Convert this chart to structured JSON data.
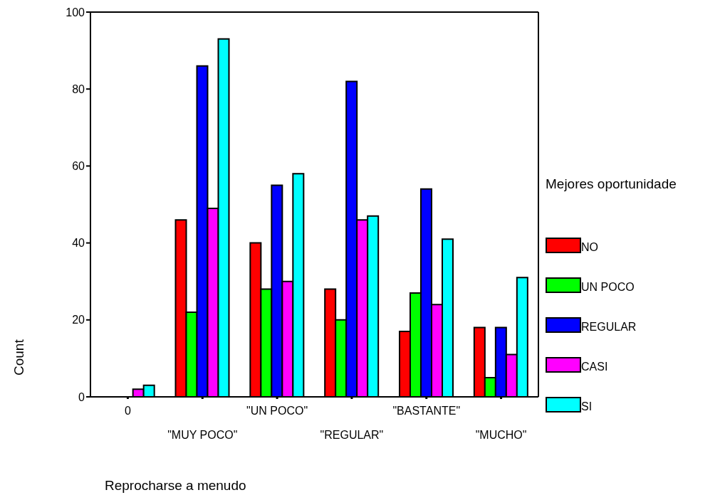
{
  "chart_data": {
    "type": "bar",
    "xlabel": "Reprocharse a menudo",
    "ylabel": "Count",
    "legend_title": "Mejores oportunidade",
    "categories": [
      "0",
      "\"MUY POCO\"",
      "\"UN POCO\"",
      "\"REGULAR\"",
      "\"BASTANTE\"",
      "\"MUCHO\""
    ],
    "series": [
      {
        "name": "NO",
        "color": "#ff0000",
        "values": [
          null,
          46,
          40,
          28,
          17,
          18
        ]
      },
      {
        "name": "UN POCO",
        "color": "#00ff00",
        "values": [
          null,
          22,
          28,
          20,
          27,
          5
        ]
      },
      {
        "name": "REGULAR",
        "color": "#0000ff",
        "values": [
          null,
          86,
          55,
          82,
          54,
          18
        ]
      },
      {
        "name": "CASI",
        "color": "#ff00ff",
        "values": [
          2,
          49,
          30,
          46,
          24,
          11
        ]
      },
      {
        "name": "SI",
        "color": "#00ffff",
        "values": [
          3,
          93,
          58,
          47,
          41,
          31
        ]
      }
    ],
    "ylim": [
      0,
      100
    ],
    "yticks": [
      0,
      20,
      40,
      60,
      80,
      100
    ],
    "grid": false,
    "legend": "right"
  }
}
